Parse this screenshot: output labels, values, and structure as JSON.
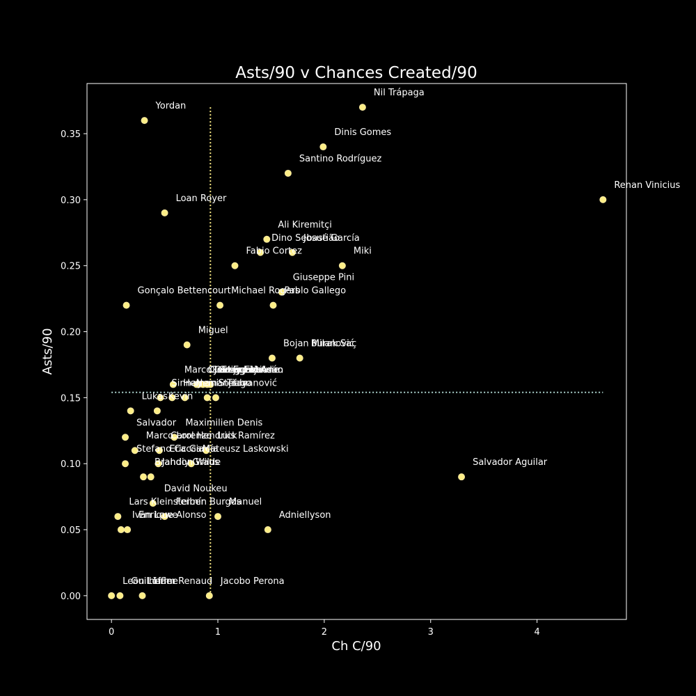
{
  "chart_data": {
    "type": "scatter",
    "title": "Asts/90 v Chances Created/90",
    "xlabel": "Ch C/90",
    "ylabel": "Asts/90",
    "xlim": [
      -0.23,
      4.84
    ],
    "ylim": [
      -0.018,
      0.388
    ],
    "xticks": [
      0,
      1,
      2,
      3,
      4
    ],
    "xtick_labels": [
      "0",
      "1",
      "2",
      "3",
      "4"
    ],
    "yticks": [
      0.0,
      0.05,
      0.1,
      0.15,
      0.2,
      0.25,
      0.3,
      0.35
    ],
    "ytick_labels": [
      "0.00",
      "0.05",
      "0.10",
      "0.15",
      "0.20",
      "0.25",
      "0.30",
      "0.35"
    ],
    "grid": false,
    "reference_lines": {
      "x_mean": 0.93,
      "y_mean": 0.154
    },
    "colors": {
      "background": "#000000",
      "marker": "#fdee86",
      "marker_edge": "#f5e6a0",
      "axes": "#ffffff",
      "text": "#ffffff",
      "vline": "#fdee86",
      "hline": "#aed6d0"
    },
    "points": [
      {
        "name": "Nil Trápaga",
        "x": 2.36,
        "y": 0.37
      },
      {
        "name": "Yordan",
        "x": 0.31,
        "y": 0.36
      },
      {
        "name": "Dinis Gomes",
        "x": 1.99,
        "y": 0.34
      },
      {
        "name": "Santino Rodríguez",
        "x": 1.66,
        "y": 0.32
      },
      {
        "name": "Renan Vinicius",
        "x": 4.62,
        "y": 0.3
      },
      {
        "name": "Loan Royer",
        "x": 0.5,
        "y": 0.29
      },
      {
        "name": "Ali Kiremitçi",
        "x": 1.46,
        "y": 0.27
      },
      {
        "name": "Dino Sebastião",
        "x": 1.4,
        "y": 0.26
      },
      {
        "name": "Josué García",
        "x": 1.7,
        "y": 0.26
      },
      {
        "name": "Fabio Cortez",
        "x": 1.16,
        "y": 0.25
      },
      {
        "name": "Miki",
        "x": 2.17,
        "y": 0.25
      },
      {
        "name": "Giuseppe Pini",
        "x": 1.6,
        "y": 0.23
      },
      {
        "name": "Gonçalo Bettencourt",
        "x": 0.14,
        "y": 0.22
      },
      {
        "name": "Michael Rogers",
        "x": 1.02,
        "y": 0.22
      },
      {
        "name": "Pablo Gallego",
        "x": 1.52,
        "y": 0.22
      },
      {
        "name": "Miguel",
        "x": 0.71,
        "y": 0.19
      },
      {
        "name": "Bojan Milanović",
        "x": 1.51,
        "y": 0.18
      },
      {
        "name": "Burak Saç",
        "x": 1.77,
        "y": 0.18
      },
      {
        "name": "Gregorio Adán",
        "x": 0.9,
        "y": 0.16
      },
      {
        "name": "Marco Olasagasti",
        "x": 0.58,
        "y": 0.16
      },
      {
        "name": "Oleksiy Lejeune",
        "x": 0.8,
        "y": 0.16
      },
      {
        "name": "Gustavo Meleiro",
        "x": 0.82,
        "y": 0.16
      },
      {
        "name": "Joël Egbe",
        "x": 0.86,
        "y": 0.16
      },
      {
        "name": "Stijn Evans",
        "x": 0.93,
        "y": 0.16
      },
      {
        "name": "Sinnay",
        "x": 0.46,
        "y": 0.15
      },
      {
        "name": "Hernani",
        "x": 0.57,
        "y": 0.15
      },
      {
        "name": "Nemanja Ivanović",
        "x": 0.69,
        "y": 0.15
      },
      {
        "name": "Stefan",
        "x": 0.9,
        "y": 0.15
      },
      {
        "name": "Tiago",
        "x": 0.98,
        "y": 0.15
      },
      {
        "name": "Lukas",
        "x": 0.18,
        "y": 0.14
      },
      {
        "name": "Kevin",
        "x": 0.43,
        "y": 0.14
      },
      {
        "name": "Salvador",
        "x": 0.13,
        "y": 0.12
      },
      {
        "name": "Maximilien Denis",
        "x": 0.59,
        "y": 0.12
      },
      {
        "name": "Marco Lorenzo",
        "x": 0.22,
        "y": 0.11
      },
      {
        "name": "Carol Hendrick",
        "x": 0.45,
        "y": 0.11
      },
      {
        "name": "Luis Ramírez",
        "x": 0.89,
        "y": 0.11
      },
      {
        "name": "Stefano Caccia",
        "x": 0.13,
        "y": 0.1
      },
      {
        "name": "Eric García",
        "x": 0.44,
        "y": 0.1
      },
      {
        "name": "Mateusz Laskowski",
        "x": 0.75,
        "y": 0.1
      },
      {
        "name": "Brandon Wilde",
        "x": 0.3,
        "y": 0.09
      },
      {
        "name": "Jahdiy Graus",
        "x": 0.37,
        "y": 0.09
      },
      {
        "name": "Salvador Aguilar",
        "x": 3.29,
        "y": 0.09
      },
      {
        "name": "David Noukeu",
        "x": 0.39,
        "y": 0.07
      },
      {
        "name": "Lars Kleinsteiber",
        "x": 0.06,
        "y": 0.06
      },
      {
        "name": "Fermín Burgos",
        "x": 0.5,
        "y": 0.06
      },
      {
        "name": "Manuel",
        "x": 1.0,
        "y": 0.06
      },
      {
        "name": "Ivan Lowe",
        "x": 0.09,
        "y": 0.05
      },
      {
        "name": "Enrique Alonso",
        "x": 0.15,
        "y": 0.05
      },
      {
        "name": "Adniellyson",
        "x": 1.47,
        "y": 0.05
      },
      {
        "name": "Leon Löffler",
        "x": 0.0,
        "y": 0.0
      },
      {
        "name": "Guilherme",
        "x": 0.08,
        "y": 0.0
      },
      {
        "name": "Liam Renaud",
        "x": 0.29,
        "y": 0.0
      },
      {
        "name": "Jacobo Perona",
        "x": 0.92,
        "y": 0.0
      }
    ]
  }
}
